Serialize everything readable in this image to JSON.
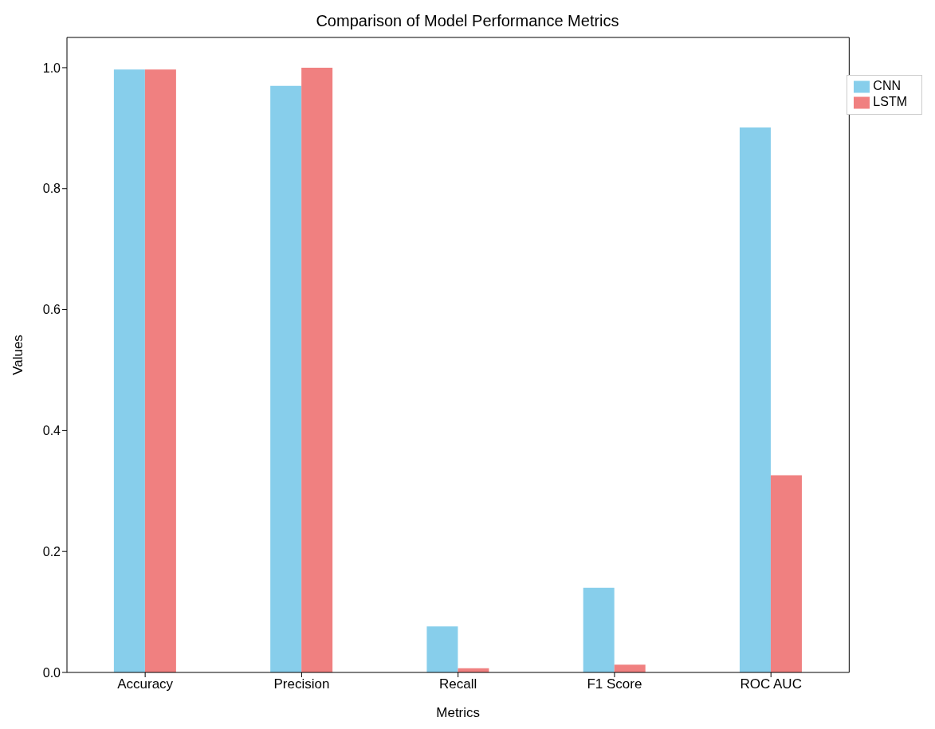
{
  "chart_data": {
    "type": "bar",
    "title": "Comparison of Model Performance Metrics",
    "xlabel": "Metrics",
    "ylabel": "Values",
    "categories": [
      "Accuracy",
      "Precision",
      "Recall",
      "F1 Score",
      "ROC AUC"
    ],
    "series": [
      {
        "name": "CNN",
        "color": "#87ceeb",
        "values": [
          0.997,
          0.97,
          0.076,
          0.14,
          0.901
        ]
      },
      {
        "name": "LSTM",
        "color": "#f08080",
        "values": [
          0.997,
          1.0,
          0.007,
          0.013,
          0.326
        ]
      }
    ],
    "ylim": [
      0,
      1.05
    ],
    "yticks": [
      {
        "value": 0,
        "label": "0.0"
      },
      {
        "value": 0.2,
        "label": "0.2"
      },
      {
        "value": 0.4,
        "label": "0.4"
      },
      {
        "value": 0.6,
        "label": "0.6"
      },
      {
        "value": 0.8,
        "label": "0.8"
      },
      {
        "value": 1,
        "label": "1.0"
      }
    ],
    "grid": false,
    "legend": "top right"
  }
}
